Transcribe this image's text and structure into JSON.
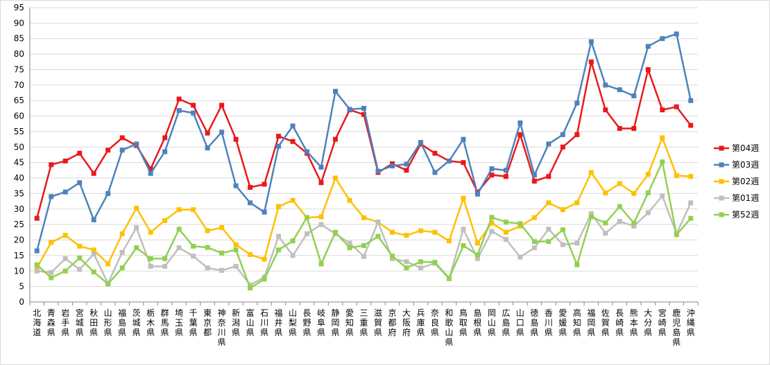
{
  "chart_data": {
    "type": "line",
    "title": "",
    "xlabel": "",
    "ylabel": "",
    "ylim": [
      0,
      95
    ],
    "ytick_step": 5,
    "grid": "horizontal",
    "legend_position": "right",
    "categories": [
      "北海道",
      "青森県",
      "岩手県",
      "宮城県",
      "秋田県",
      "山形県",
      "福島県",
      "茨城県",
      "栃木県",
      "群馬県",
      "埼玉県",
      "千葉県",
      "東京都",
      "神奈川県",
      "新潟県",
      "富山県",
      "石川県",
      "福井県",
      "山梨県",
      "長野県",
      "岐阜県",
      "静岡県",
      "愛知県",
      "三重県",
      "滋賀県",
      "京都府",
      "大阪府",
      "兵庫県",
      "奈良県",
      "和歌山県",
      "鳥取県",
      "島根県",
      "岡山県",
      "広島県",
      "山口県",
      "徳島県",
      "香川県",
      "愛媛県",
      "高知県",
      "福岡県",
      "佐賀県",
      "長崎県",
      "熊本県",
      "大分県",
      "宮崎県",
      "鹿児島県",
      "沖縄県"
    ],
    "series": [
      {
        "name": "第04週",
        "color": "#e8191c",
        "marker": "square",
        "values": [
          27,
          44.3,
          45.5,
          48,
          41.5,
          49,
          53,
          50.5,
          43,
          53,
          65.5,
          63.5,
          54.5,
          63.5,
          52.5,
          37,
          38,
          53.5,
          51.8,
          48,
          38.5,
          52.5,
          62,
          60.5,
          41.8,
          44.6,
          42.5,
          51,
          48,
          45.5,
          45,
          35.5,
          41,
          40.5,
          54,
          39,
          40.5,
          50,
          54,
          77.5,
          62,
          56,
          56,
          75,
          62,
          63,
          57
        ]
      },
      {
        "name": "第03週",
        "color": "#4f81bd",
        "marker": "square",
        "values": [
          16.5,
          34,
          35.5,
          38.5,
          26.5,
          35,
          49,
          51,
          41.5,
          48.5,
          61.8,
          61,
          49.7,
          54.8,
          37.5,
          32,
          29,
          50.3,
          56.8,
          48.5,
          43.5,
          68,
          62.2,
          62.5,
          42.2,
          43.9,
          44.5,
          51.5,
          41.8,
          45.5,
          52.5,
          34.8,
          43,
          42.5,
          57.8,
          41,
          51,
          54,
          64.2,
          84,
          70,
          68.5,
          66.5,
          82.5,
          85,
          86.5,
          65
        ]
      },
      {
        "name": "第02週",
        "color": "#ffc000",
        "marker": "square",
        "values": [
          11,
          19.2,
          21.5,
          18,
          16.8,
          12.3,
          22,
          30.3,
          22.5,
          26.3,
          29.8,
          29.8,
          23,
          24,
          18.5,
          15.3,
          13.8,
          30.8,
          32.8,
          27.2,
          27.5,
          40,
          32.8,
          27.2,
          25.8,
          22.5,
          21.5,
          23,
          22.5,
          19.7,
          33.5,
          19,
          25.5,
          22.5,
          24.5,
          27.2,
          32,
          29.8,
          32,
          41.8,
          35.2,
          38.2,
          35,
          41.2,
          53,
          40.8,
          40.5
        ]
      },
      {
        "name": "第01週",
        "color": "#bfbfbf",
        "marker": "square",
        "values": [
          10,
          9.5,
          14,
          10.5,
          15.5,
          6,
          16,
          24,
          11.5,
          11.5,
          17.5,
          14.8,
          11,
          10.2,
          11.5,
          5.5,
          8,
          21.2,
          15,
          22,
          25,
          22,
          19,
          14.7,
          25.8,
          14,
          13,
          11,
          12.5,
          7.5,
          23.5,
          14,
          22.8,
          20.2,
          14.5,
          17.5,
          23.5,
          18.5,
          19,
          28.5,
          22.2,
          26,
          24.5,
          28.8,
          34.2,
          22,
          32
        ]
      },
      {
        "name": "第52週",
        "color": "#92d050",
        "marker": "square",
        "values": [
          12,
          7.8,
          10,
          14.2,
          9.7,
          5.8,
          11,
          17.5,
          14,
          14,
          23.5,
          18,
          17.6,
          15.8,
          16.8,
          4.5,
          7.4,
          16.8,
          19.7,
          27.3,
          12.3,
          22.5,
          17.5,
          18.2,
          21.2,
          14.8,
          11,
          13,
          12.8,
          7.7,
          18.2,
          15.2,
          27.3,
          25.8,
          25.3,
          19.5,
          19.5,
          23.3,
          12,
          27.5,
          25.5,
          30.8,
          25.5,
          35.2,
          45.2,
          21.7,
          27
        ]
      }
    ]
  }
}
